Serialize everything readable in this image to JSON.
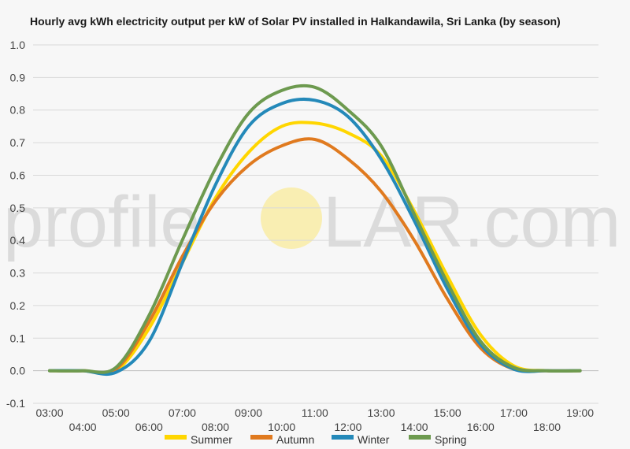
{
  "chart_data": {
    "type": "line",
    "title": "Hourly avg kWh electricity output per kW of Solar PV installed in Halkandawila, Sri Lanka (by season)",
    "xlabel": "",
    "ylabel": "",
    "ylim": [
      -0.1,
      1.0
    ],
    "y_ticks": [
      "1.0",
      "0.9",
      "0.8",
      "0.7",
      "0.6",
      "0.5",
      "0.4",
      "0.3",
      "0.2",
      "0.1",
      "0.0",
      "-0.1"
    ],
    "x": [
      "03:00",
      "04:00",
      "05:00",
      "06:00",
      "07:00",
      "08:00",
      "09:00",
      "10:00",
      "11:00",
      "12:00",
      "13:00",
      "14:00",
      "15:00",
      "16:00",
      "17:00",
      "18:00",
      "19:00"
    ],
    "grid": true,
    "legend_position": "bottom",
    "series": [
      {
        "name": "Summer",
        "color": "#ffd600",
        "values": [
          0.0,
          0.0,
          0.0,
          0.13,
          0.33,
          0.53,
          0.67,
          0.75,
          0.76,
          0.73,
          0.66,
          0.49,
          0.29,
          0.11,
          0.015,
          0.0,
          0.0
        ]
      },
      {
        "name": "Autumn",
        "color": "#e07a1f",
        "values": [
          0.0,
          0.0,
          0.005,
          0.15,
          0.35,
          0.52,
          0.63,
          0.69,
          0.71,
          0.65,
          0.55,
          0.4,
          0.22,
          0.07,
          0.005,
          0.0,
          0.0
        ]
      },
      {
        "name": "Winter",
        "color": "#2489b9",
        "values": [
          0.0,
          0.0,
          -0.005,
          0.09,
          0.33,
          0.57,
          0.75,
          0.82,
          0.83,
          0.78,
          0.65,
          0.46,
          0.25,
          0.08,
          0.005,
          0.0,
          0.0
        ]
      },
      {
        "name": "Spring",
        "color": "#6d9a4f",
        "values": [
          0.0,
          0.0,
          0.01,
          0.17,
          0.4,
          0.62,
          0.79,
          0.86,
          0.87,
          0.8,
          0.69,
          0.48,
          0.27,
          0.09,
          0.01,
          0.0,
          0.0
        ]
      }
    ]
  },
  "watermark": {
    "left_text": "profile",
    "right_text": "LAR.com",
    "sun_color": "#ffd600"
  }
}
